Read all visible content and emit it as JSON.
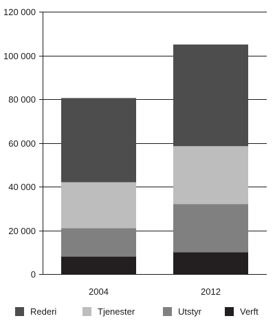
{
  "chart_data": {
    "type": "bar",
    "stacked": true,
    "categories": [
      "2004",
      "2012"
    ],
    "series": [
      {
        "name": "Verft",
        "values": [
          8000,
          10000
        ],
        "color": "#231f20"
      },
      {
        "name": "Utstyr",
        "values": [
          13000,
          22000
        ],
        "color": "#808080"
      },
      {
        "name": "Tjenester",
        "values": [
          21000,
          26500
        ],
        "color": "#bdbdbd"
      },
      {
        "name": "Rederi",
        "values": [
          38500,
          46500
        ],
        "color": "#4d4d4d"
      }
    ],
    "legend_order": [
      "Rederi",
      "Tjenester",
      "Utstyr",
      "Verft"
    ],
    "ylim": [
      0,
      120000
    ],
    "yticks": [
      0,
      20000,
      40000,
      60000,
      80000,
      100000,
      120000
    ],
    "ytick_labels": [
      "0",
      "20 000",
      "40 000",
      "60 000",
      "80 000",
      "100 000",
      "120 000"
    ],
    "grid": true,
    "legend_position": "bottom"
  }
}
